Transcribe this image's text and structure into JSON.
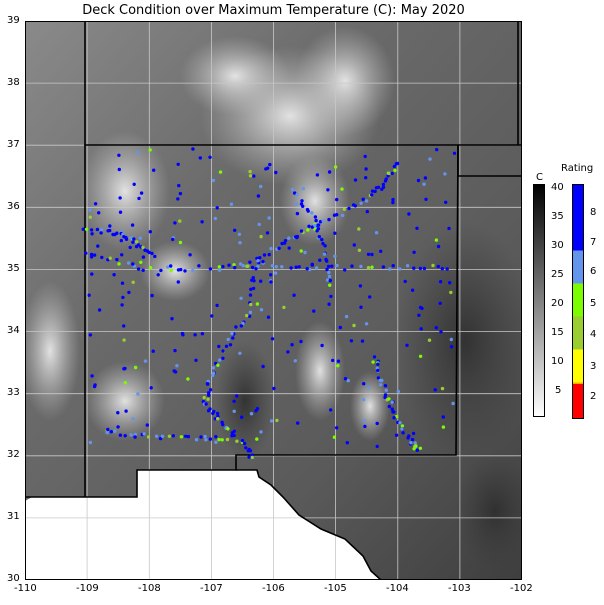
{
  "title": "Deck Condition over Maximum Temperature (C): May 2020",
  "x_ticks": [
    "-110",
    "-109",
    "-108",
    "-107",
    "-106",
    "-105",
    "-104",
    "-103",
    "-102"
  ],
  "y_ticks": [
    "30",
    "31",
    "32",
    "33",
    "34",
    "35",
    "36",
    "37",
    "38",
    "39"
  ],
  "temperature_colorbar": {
    "label": "C",
    "ticks": [
      "40",
      "35",
      "30",
      "25",
      "20",
      "15",
      "10",
      "5"
    ],
    "range": [
      1,
      41
    ],
    "colormap": "gray_r"
  },
  "rating_legend": {
    "label": "Rating",
    "ticks": [
      "8",
      "7",
      "6",
      "5",
      "4",
      "3",
      "2"
    ],
    "colors": {
      "2": "#ff0000",
      "3": "#ffa500",
      "4": "#ffff00",
      "5": "#9acd32",
      "6": "#7cfc00",
      "7": "#6495ed",
      "8": "#0000ff"
    }
  },
  "map_extent": {
    "lon": [
      -110,
      -102
    ],
    "lat": [
      30,
      39
    ]
  },
  "colors": {
    "rating_8": "#0000ff",
    "rating_7": "#6495ed",
    "rating_6": "#7cfc00",
    "rating_5": "#9acd32",
    "boundary": "#000000",
    "grid": "#c8c8c8",
    "nodata": "#ffffff"
  }
}
